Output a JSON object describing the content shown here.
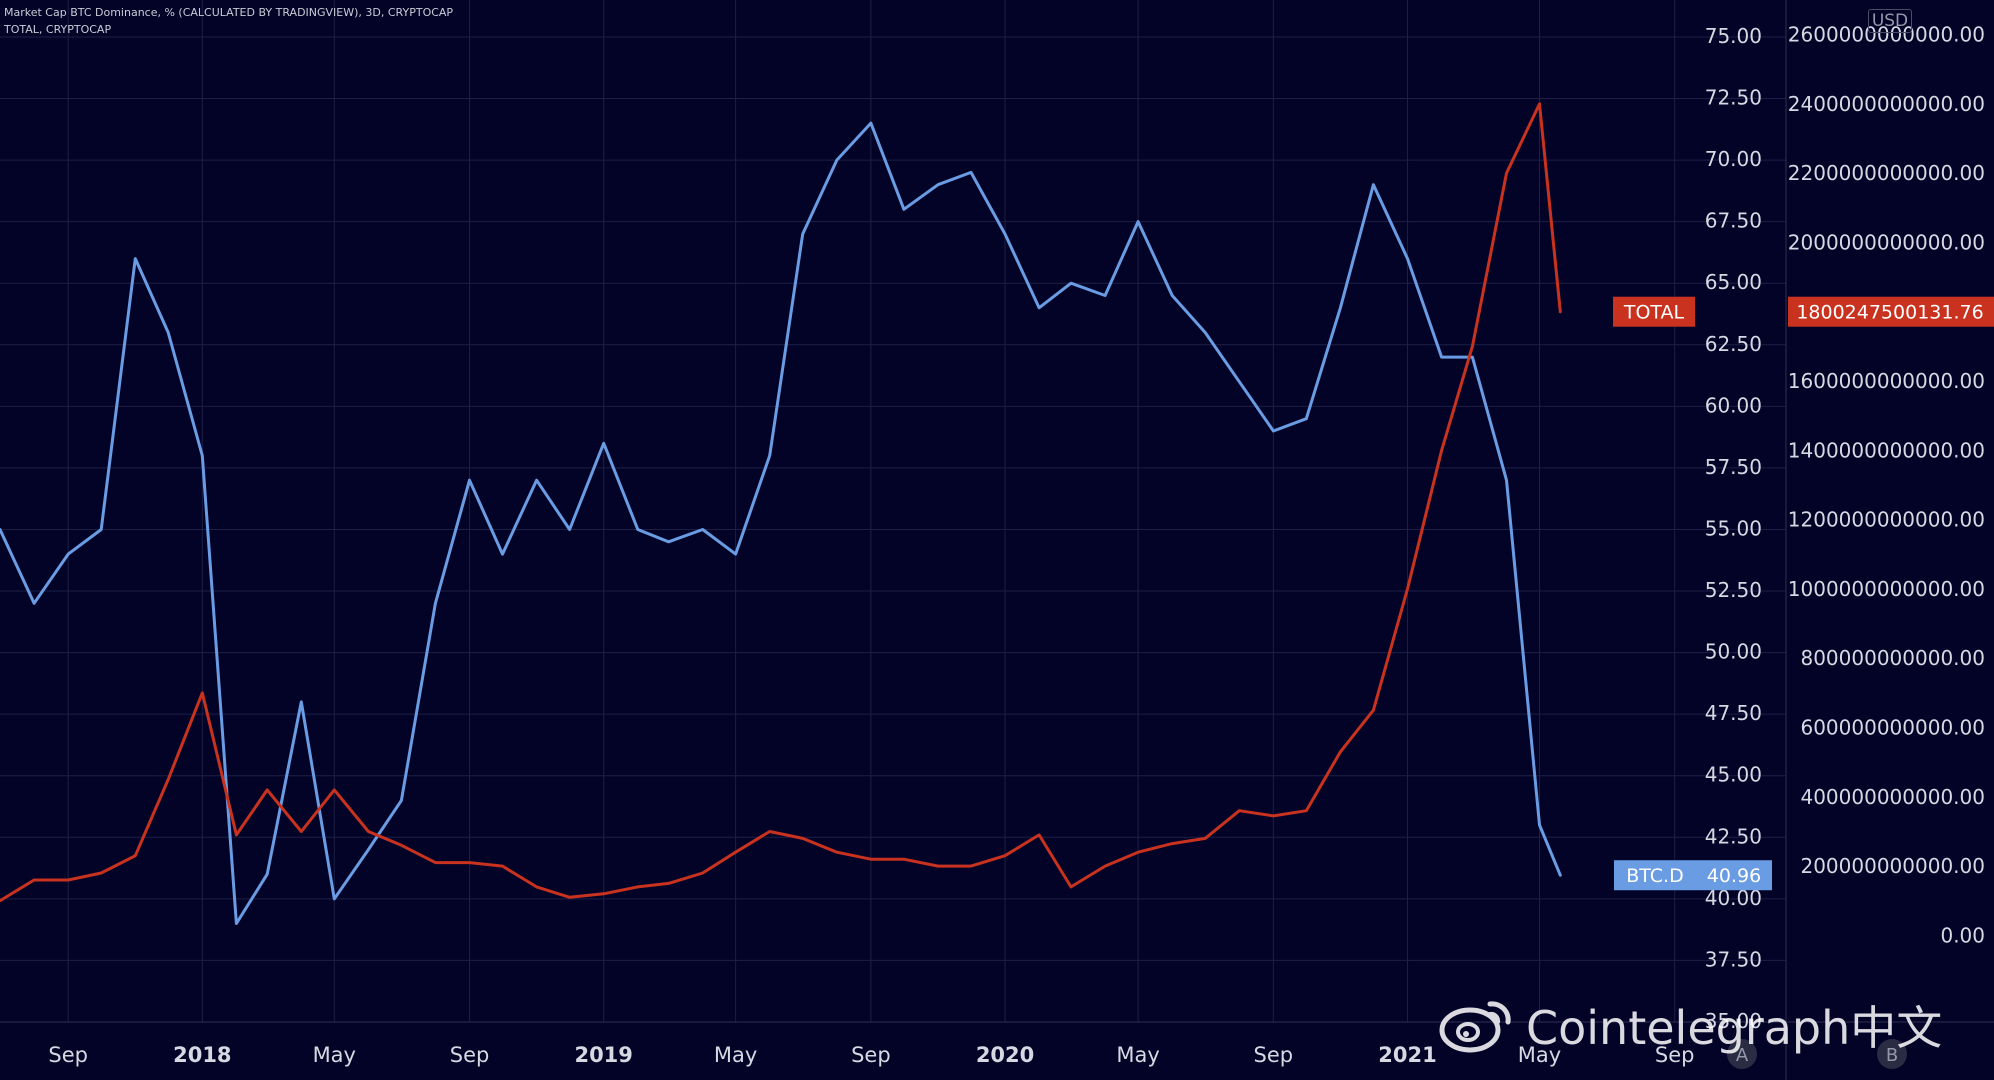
{
  "header": {
    "line1": "Market Cap BTC Dominance, % (CALCULATED BY TRADINGVIEW), 3D, CRYPTOCAP",
    "line2": "TOTAL, CRYPTOCAP"
  },
  "right_scale_currency": "USD",
  "watermark": "Cointelegraph中文",
  "colors": {
    "background": "#030328",
    "btc_dominance": "#6a9ce3",
    "total": "#c8321e",
    "grid": "#1d1f45",
    "axis_text": "#d6d8e2"
  },
  "chart_data": {
    "type": "line",
    "x": [
      "2017-07-01",
      "2017-08-01",
      "2017-09-01",
      "2017-10-01",
      "2017-11-01",
      "2017-12-01",
      "2018-01-01",
      "2018-02-01",
      "2018-03-01",
      "2018-04-01",
      "2018-05-01",
      "2018-06-01",
      "2018-07-01",
      "2018-08-01",
      "2018-09-01",
      "2018-10-01",
      "2018-11-01",
      "2018-12-01",
      "2019-01-01",
      "2019-02-01",
      "2019-03-01",
      "2019-04-01",
      "2019-05-01",
      "2019-06-01",
      "2019-07-01",
      "2019-08-01",
      "2019-09-01",
      "2019-10-01",
      "2019-11-01",
      "2019-12-01",
      "2020-01-01",
      "2020-02-01",
      "2020-03-01",
      "2020-04-01",
      "2020-05-01",
      "2020-06-01",
      "2020-07-01",
      "2020-08-01",
      "2020-09-01",
      "2020-10-01",
      "2020-11-01",
      "2020-12-01",
      "2021-01-01",
      "2021-02-01",
      "2021-03-01",
      "2021-04-01",
      "2021-05-01",
      "2021-05-20"
    ],
    "xticks": [
      "Sep",
      "2018",
      "May",
      "Sep",
      "2019",
      "May",
      "Sep",
      "2020",
      "May",
      "Sep",
      "2021",
      "May",
      "Sep"
    ],
    "series": [
      {
        "name": "BTC.D",
        "axis": "left",
        "values": [
          55.0,
          52.0,
          54.0,
          55.0,
          66.0,
          63.0,
          58.0,
          39.0,
          41.0,
          48.0,
          40.0,
          42.0,
          44.0,
          52.0,
          57.0,
          54.0,
          57.0,
          55.0,
          58.5,
          55.0,
          54.5,
          55.0,
          54.0,
          58.0,
          67.0,
          70.0,
          71.5,
          68.0,
          69.0,
          69.5,
          67.0,
          64.0,
          65.0,
          64.5,
          67.5,
          64.5,
          63.0,
          61.0,
          59.0,
          59.5,
          64.0,
          69.0,
          66.0,
          62.0,
          62.0,
          57.0,
          43.0,
          40.96
        ],
        "last_label": "40.96"
      },
      {
        "name": "TOTAL",
        "axis": "right",
        "values": [
          100000000000,
          160000000000,
          160000000000,
          180000000000,
          230000000000,
          450000000000,
          700000000000,
          290000000000,
          420000000000,
          300000000000,
          420000000000,
          300000000000,
          260000000000,
          210000000000,
          210000000000,
          200000000000,
          140000000000,
          110000000000,
          120000000000,
          140000000000,
          150000000000,
          180000000000,
          240000000000,
          300000000000,
          280000000000,
          240000000000,
          220000000000,
          220000000000,
          200000000000,
          200000000000,
          230000000000,
          290000000000,
          140000000000,
          200000000000,
          240000000000,
          265000000000,
          280000000000,
          360000000000,
          345000000000,
          360000000000,
          530000000000,
          650000000000,
          1000000000000,
          1400000000000,
          1700000000000,
          2200000000000,
          2400000000000,
          1800247500131.76
        ],
        "last_label": "1800247500131.76"
      }
    ],
    "left_axis": {
      "ylim": [
        35.0,
        76.5
      ],
      "ticks": [
        "35.00",
        "37.50",
        "40.00",
        "42.50",
        "45.00",
        "47.50",
        "50.00",
        "52.50",
        "55.00",
        "57.50",
        "60.00",
        "62.50",
        "65.00",
        "67.50",
        "70.00",
        "72.50",
        "75.00"
      ]
    },
    "right_axis": {
      "ylim": [
        -250000000000,
        2700000000000
      ],
      "ticks": [
        "0.00",
        "200000000000.00",
        "400000000000.00",
        "600000000000.00",
        "800000000000.00",
        "1000000000000.00",
        "1200000000000.00",
        "1400000000000.00",
        "1600000000000.00",
        "1800000000000.00",
        "2000000000000.00",
        "2200000000000.00",
        "2400000000000.00",
        "2600000000000.00"
      ]
    },
    "grid": true,
    "bottom_axis_badges": [
      "A",
      "B"
    ]
  }
}
